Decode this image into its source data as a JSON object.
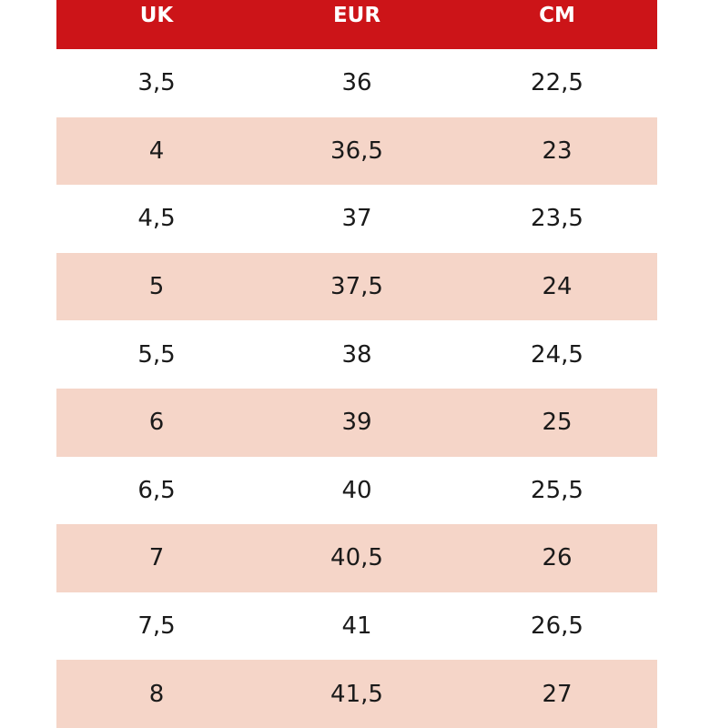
{
  "colors": {
    "header_bg": "#cc1418",
    "header_text": "#ffffff",
    "stripe": "#f5d5c8",
    "text": "#1a1a1a"
  },
  "table": {
    "headers": [
      "UK",
      "EUR",
      "CM"
    ],
    "rows": [
      [
        "3,5",
        "36",
        "22,5"
      ],
      [
        "4",
        "36,5",
        "23"
      ],
      [
        "4,5",
        "37",
        "23,5"
      ],
      [
        "5",
        "37,5",
        "24"
      ],
      [
        "5,5",
        "38",
        "24,5"
      ],
      [
        "6",
        "39",
        "25"
      ],
      [
        "6,5",
        "40",
        "25,5"
      ],
      [
        "7",
        "40,5",
        "26"
      ],
      [
        "7,5",
        "41",
        "26,5"
      ],
      [
        "8",
        "41,5",
        "27"
      ]
    ]
  }
}
